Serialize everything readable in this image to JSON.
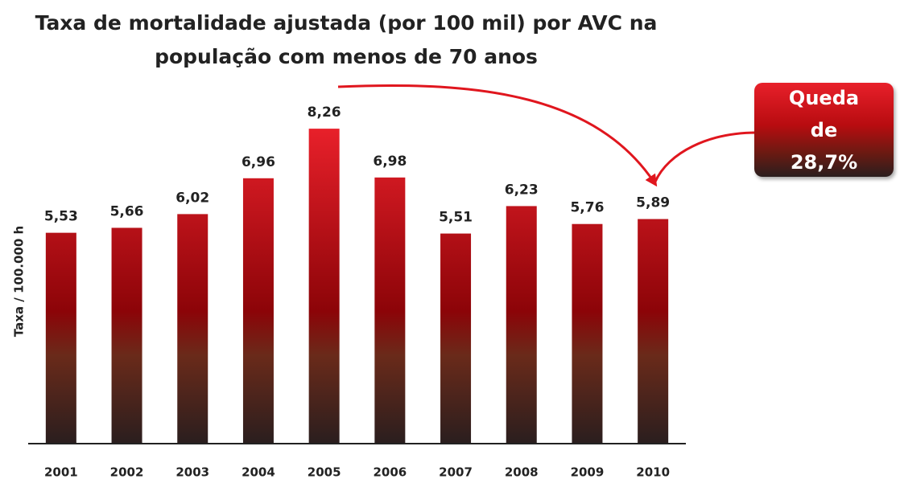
{
  "chart_data": {
    "type": "bar",
    "title": "Taxa de mortalidade ajustada (por 100 mil) por AVC na população com menos de 70 anos",
    "y_axis_label": "Taxa / 100.000 h",
    "annotation": "Queda de 28,7%",
    "categories": [
      "2001",
      "2002",
      "2003",
      "2004",
      "2005",
      "2006",
      "2007",
      "2008",
      "2009",
      "2010"
    ],
    "values": [
      5.53,
      5.66,
      6.02,
      6.96,
      8.26,
      6.98,
      5.51,
      6.23,
      5.76,
      5.89
    ],
    "value_labels": [
      "5,53",
      "5,66",
      "6,02",
      "6,96",
      "8,26",
      "6,98",
      "5,51",
      "6,23",
      "5,76",
      "5,89"
    ],
    "color": "#e8202a",
    "ylim": [
      0,
      9
    ],
    "grid": false
  }
}
